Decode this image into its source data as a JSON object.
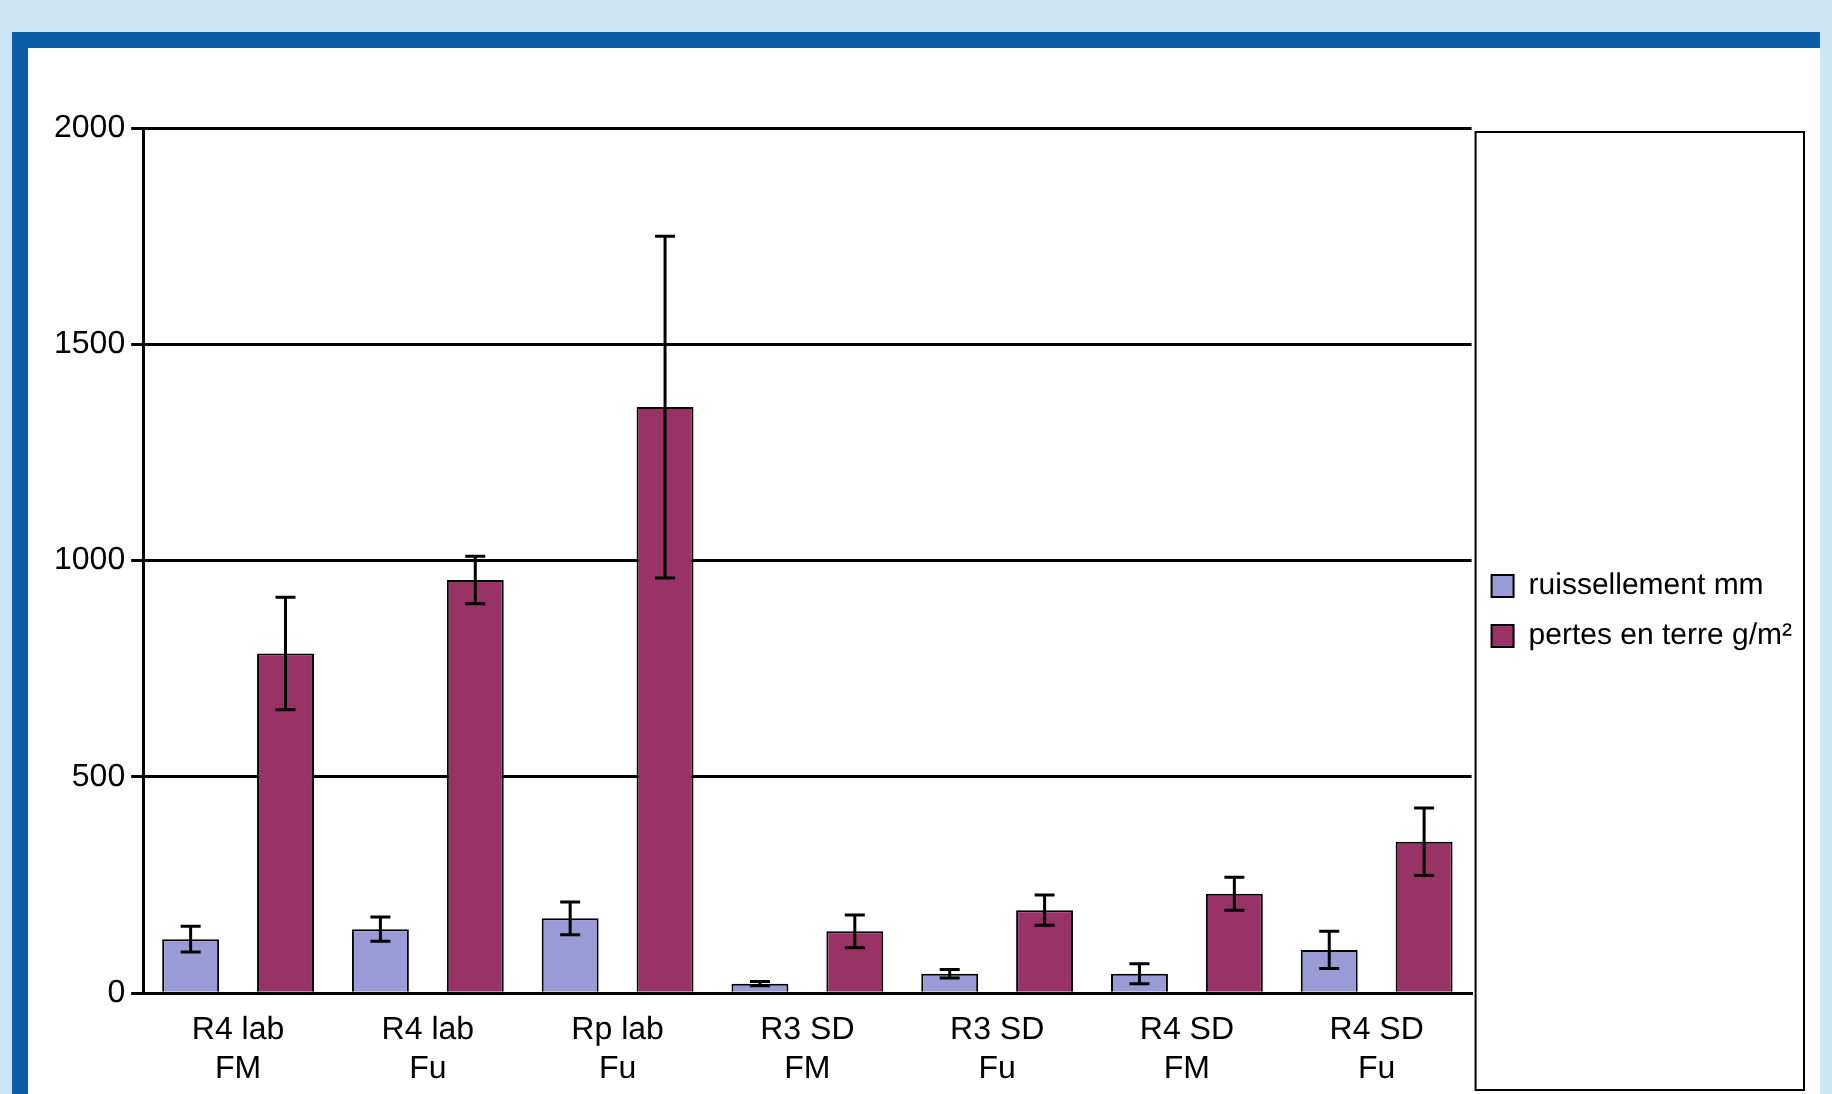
{
  "chart_data": {
    "type": "bar",
    "categories": [
      "R4 lab FM",
      "R4 lab Fu",
      "Rp lab Fu",
      "R3 SD FM",
      "R3 SD Fu",
      "R4 SD FM",
      "R4 SD Fu"
    ],
    "series": [
      {
        "name": "ruissellement mm",
        "color": "#9a9ad6",
        "values": [
          125,
          148,
          173,
          22,
          45,
          45,
          100
        ],
        "errors": [
          30,
          28,
          38,
          5,
          10,
          23,
          43
        ]
      },
      {
        "name": "pertes en terre g/m²",
        "color": "#993366",
        "values": [
          785,
          955,
          1355,
          143,
          192,
          230,
          350
        ],
        "errors": [
          130,
          55,
          395,
          38,
          35,
          38,
          78
        ]
      }
    ],
    "ylim": [
      0,
      2000
    ],
    "yticks": [
      0,
      500,
      1000,
      1500,
      2000
    ],
    "grid": "y",
    "legend": "right"
  }
}
